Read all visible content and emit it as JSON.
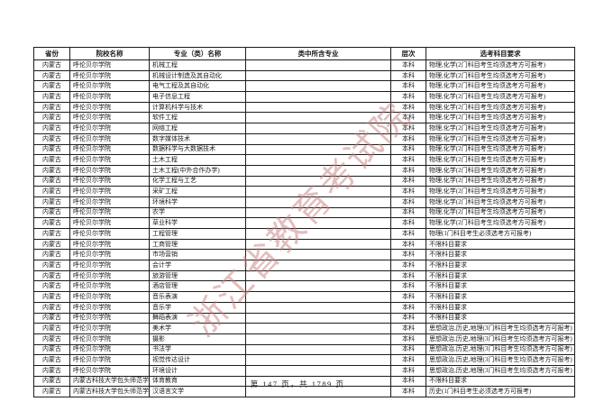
{
  "watermark": {
    "text": "浙江省教育考试院",
    "color": "#c97f7f"
  },
  "footer": {
    "page_info": "第 147 页，共 1789 页"
  },
  "table": {
    "columns": [
      "省份",
      "院校名称",
      "专业（类）名称",
      "类中所含专业",
      "层次",
      "选考科目要求"
    ],
    "rows": [
      {
        "province": "内蒙古",
        "college": "呼伦贝尔学院",
        "major": "机械工程",
        "contained": "",
        "level": "本科",
        "requirement": "物理,化学(2门科目考生均须选考方可报考)"
      },
      {
        "province": "内蒙古",
        "college": "呼伦贝尔学院",
        "major": "机械设计制造及其自动化",
        "contained": "",
        "level": "本科",
        "requirement": "物理,化学(2门科目考生均须选考方可报考)"
      },
      {
        "province": "内蒙古",
        "college": "呼伦贝尔学院",
        "major": "电气工程及其自动化",
        "contained": "",
        "level": "本科",
        "requirement": "物理,化学(2门科目考生均须选考方可报考)"
      },
      {
        "province": "内蒙古",
        "college": "呼伦贝尔学院",
        "major": "电子信息工程",
        "contained": "",
        "level": "本科",
        "requirement": "物理,化学(2门科目考生均须选考方可报考)"
      },
      {
        "province": "内蒙古",
        "college": "呼伦贝尔学院",
        "major": "计算机科学与技术",
        "contained": "",
        "level": "本科",
        "requirement": "物理,化学(2门科目考生均须选考方可报考)"
      },
      {
        "province": "内蒙古",
        "college": "呼伦贝尔学院",
        "major": "软件工程",
        "contained": "",
        "level": "本科",
        "requirement": "物理,化学(2门科目考生均须选考方可报考)"
      },
      {
        "province": "内蒙古",
        "college": "呼伦贝尔学院",
        "major": "网络工程",
        "contained": "",
        "level": "本科",
        "requirement": "物理,化学(2门科目考生均须选考方可报考)"
      },
      {
        "province": "内蒙古",
        "college": "呼伦贝尔学院",
        "major": "数字媒体技术",
        "contained": "",
        "level": "本科",
        "requirement": "物理,化学(2门科目考生均须选考方可报考)"
      },
      {
        "province": "内蒙古",
        "college": "呼伦贝尔学院",
        "major": "数据科学与大数据技术",
        "contained": "",
        "level": "本科",
        "requirement": "物理,化学(2门科目考生均须选考方可报考)"
      },
      {
        "province": "内蒙古",
        "college": "呼伦贝尔学院",
        "major": "土木工程",
        "contained": "",
        "level": "本科",
        "requirement": "物理,化学(2门科目考生均须选考方可报考)"
      },
      {
        "province": "内蒙古",
        "college": "呼伦贝尔学院",
        "major": "土木工程(中外合作办学)",
        "contained": "",
        "level": "本科",
        "requirement": "物理,化学(2门科目考生均须选考方可报考)"
      },
      {
        "province": "内蒙古",
        "college": "呼伦贝尔学院",
        "major": "化学工程与工艺",
        "contained": "",
        "level": "本科",
        "requirement": "物理,化学(2门科目考生均须选考方可报考)"
      },
      {
        "province": "内蒙古",
        "college": "呼伦贝尔学院",
        "major": "采矿工程",
        "contained": "",
        "level": "本科",
        "requirement": "物理,化学(2门科目考生均须选考方可报考)"
      },
      {
        "province": "内蒙古",
        "college": "呼伦贝尔学院",
        "major": "环境科学",
        "contained": "",
        "level": "本科",
        "requirement": "物理,化学(2门科目考生均须选考方可报考)"
      },
      {
        "province": "内蒙古",
        "college": "呼伦贝尔学院",
        "major": "农学",
        "contained": "",
        "level": "本科",
        "requirement": "物理,化学(2门科目考生均须选考方可报考)"
      },
      {
        "province": "内蒙古",
        "college": "呼伦贝尔学院",
        "major": "草业科学",
        "contained": "",
        "level": "本科",
        "requirement": "物理,化学(2门科目考生均须选考方可报考)"
      },
      {
        "province": "内蒙古",
        "college": "呼伦贝尔学院",
        "major": "工程管理",
        "contained": "",
        "level": "本科",
        "requirement": "物理(1门科目考生必须选考方可报考)"
      },
      {
        "province": "内蒙古",
        "college": "呼伦贝尔学院",
        "major": "工商管理",
        "contained": "",
        "level": "本科",
        "requirement": "不限科目要求"
      },
      {
        "province": "内蒙古",
        "college": "呼伦贝尔学院",
        "major": "市场营销",
        "contained": "",
        "level": "本科",
        "requirement": "不限科目要求"
      },
      {
        "province": "内蒙古",
        "college": "呼伦贝尔学院",
        "major": "会计学",
        "contained": "",
        "level": "本科",
        "requirement": "不限科目要求"
      },
      {
        "province": "内蒙古",
        "college": "呼伦贝尔学院",
        "major": "旅游管理",
        "contained": "",
        "level": "本科",
        "requirement": "不限科目要求"
      },
      {
        "province": "内蒙古",
        "college": "呼伦贝尔学院",
        "major": "酒店管理",
        "contained": "",
        "level": "本科",
        "requirement": "不限科目要求"
      },
      {
        "province": "内蒙古",
        "college": "呼伦贝尔学院",
        "major": "音乐表演",
        "contained": "",
        "level": "本科",
        "requirement": "不限科目要求"
      },
      {
        "province": "内蒙古",
        "college": "呼伦贝尔学院",
        "major": "音乐学",
        "contained": "",
        "level": "本科",
        "requirement": "不限科目要求"
      },
      {
        "province": "内蒙古",
        "college": "呼伦贝尔学院",
        "major": "舞蹈表演",
        "contained": "",
        "level": "本科",
        "requirement": "不限科目要求"
      },
      {
        "province": "内蒙古",
        "college": "呼伦贝尔学院",
        "major": "美术学",
        "contained": "",
        "level": "本科",
        "requirement": "思想政治,历史,地理(3门科目考生均须选考方可报考)"
      },
      {
        "province": "内蒙古",
        "college": "呼伦贝尔学院",
        "major": "摄影",
        "contained": "",
        "level": "本科",
        "requirement": "思想政治,历史,地理(3门科目考生均须选考方可报考)"
      },
      {
        "province": "内蒙古",
        "college": "呼伦贝尔学院",
        "major": "书法学",
        "contained": "",
        "level": "本科",
        "requirement": "思想政治,历史,地理(3门科目考生均须选考方可报考)"
      },
      {
        "province": "内蒙古",
        "college": "呼伦贝尔学院",
        "major": "视觉传达设计",
        "contained": "",
        "level": "本科",
        "requirement": "思想政治,历史,地理(3门科目考生均须选考方可报考)"
      },
      {
        "province": "内蒙古",
        "college": "呼伦贝尔学院",
        "major": "环境设计",
        "contained": "",
        "level": "本科",
        "requirement": "思想政治,历史,地理(3门科目考生均须选考方可报考)"
      },
      {
        "province": "内蒙古",
        "college": "内蒙古科技大学包头师范学院",
        "major": "体育教育",
        "contained": "",
        "level": "本科",
        "requirement": "不限科目要求"
      },
      {
        "province": "内蒙古",
        "college": "内蒙古科技大学包头师范学院",
        "major": "汉语言文学",
        "contained": "",
        "level": "本科",
        "requirement": "历史(1门科目考生必须选考方可报考)"
      }
    ]
  }
}
